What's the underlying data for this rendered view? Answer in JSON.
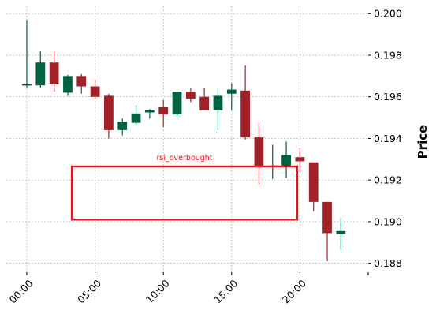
{
  "chart_data": {
    "type": "candlestick",
    "ylabel": "Price",
    "y_axis_position": "right",
    "ylim": [
      0.18757,
      0.20035
    ],
    "yticks": [
      "0.188",
      "0.190",
      "0.192",
      "0.194",
      "0.196",
      "0.198",
      "0.200"
    ],
    "x_range": [
      -1.5,
      25.0
    ],
    "xticks": [
      {
        "pos": 0,
        "label": "00:00"
      },
      {
        "pos": 5,
        "label": "05:00"
      },
      {
        "pos": 10,
        "label": "10:00"
      },
      {
        "pos": 15,
        "label": "15:00"
      },
      {
        "pos": 20,
        "label": "20:00"
      },
      {
        "pos": 25,
        "label": ""
      }
    ],
    "grid": true,
    "colors": {
      "up": "#006340",
      "down": "#a02128",
      "annotation": "#e8141b"
    },
    "candles": [
      {
        "t": "00:00",
        "o": 0.19655,
        "h": 0.1997,
        "l": 0.19645,
        "c": 0.1966
      },
      {
        "t": "01:00",
        "o": 0.19655,
        "h": 0.1982,
        "l": 0.19645,
        "c": 0.19765
      },
      {
        "t": "02:00",
        "o": 0.19765,
        "h": 0.1982,
        "l": 0.19625,
        "c": 0.1966
      },
      {
        "t": "03:00",
        "o": 0.1962,
        "h": 0.19705,
        "l": 0.19605,
        "c": 0.197
      },
      {
        "t": "04:00",
        "o": 0.197,
        "h": 0.1971,
        "l": 0.19615,
        "c": 0.1965
      },
      {
        "t": "05:00",
        "o": 0.1965,
        "h": 0.1968,
        "l": 0.1959,
        "c": 0.196
      },
      {
        "t": "06:00",
        "o": 0.19605,
        "h": 0.19615,
        "l": 0.194,
        "c": 0.1944
      },
      {
        "t": "07:00",
        "o": 0.1944,
        "h": 0.19495,
        "l": 0.19415,
        "c": 0.1948
      },
      {
        "t": "08:00",
        "o": 0.19475,
        "h": 0.1956,
        "l": 0.1946,
        "c": 0.1952
      },
      {
        "t": "09:00",
        "o": 0.19525,
        "h": 0.1954,
        "l": 0.19495,
        "c": 0.19535
      },
      {
        "t": "10:00",
        "o": 0.1955,
        "h": 0.19585,
        "l": 0.19455,
        "c": 0.19515
      },
      {
        "t": "11:00",
        "o": 0.19515,
        "h": 0.19625,
        "l": 0.19495,
        "c": 0.19625
      },
      {
        "t": "12:00",
        "o": 0.19625,
        "h": 0.1964,
        "l": 0.19575,
        "c": 0.1959
      },
      {
        "t": "13:00",
        "o": 0.196,
        "h": 0.1964,
        "l": 0.19535,
        "c": 0.19535
      },
      {
        "t": "14:00",
        "o": 0.19535,
        "h": 0.1964,
        "l": 0.1944,
        "c": 0.19605
      },
      {
        "t": "15:00",
        "o": 0.19615,
        "h": 0.19665,
        "l": 0.19535,
        "c": 0.19635
      },
      {
        "t": "16:00",
        "o": 0.1963,
        "h": 0.1975,
        "l": 0.19395,
        "c": 0.19405
      },
      {
        "t": "17:00",
        "o": 0.19405,
        "h": 0.19475,
        "l": 0.1918,
        "c": 0.19265
      },
      {
        "t": "18:00",
        "o": 0.19265,
        "h": 0.1937,
        "l": 0.19205,
        "c": 0.1927
      },
      {
        "t": "19:00",
        "o": 0.19265,
        "h": 0.19385,
        "l": 0.1921,
        "c": 0.1932
      },
      {
        "t": "20:00",
        "o": 0.1931,
        "h": 0.19355,
        "l": 0.1924,
        "c": 0.1929
      },
      {
        "t": "21:00",
        "o": 0.19285,
        "h": 0.19285,
        "l": 0.1905,
        "c": 0.19095
      },
      {
        "t": "22:00",
        "o": 0.19095,
        "h": 0.19095,
        "l": 0.1881,
        "c": 0.18945
      },
      {
        "t": "23:00",
        "o": 0.1894,
        "h": 0.1902,
        "l": 0.18865,
        "c": 0.18955
      }
    ],
    "annotations": [
      {
        "label": "rsi_overbought",
        "x0": 3.3,
        "x1": 19.8,
        "y0": 0.1901,
        "y1": 0.19265
      }
    ]
  }
}
